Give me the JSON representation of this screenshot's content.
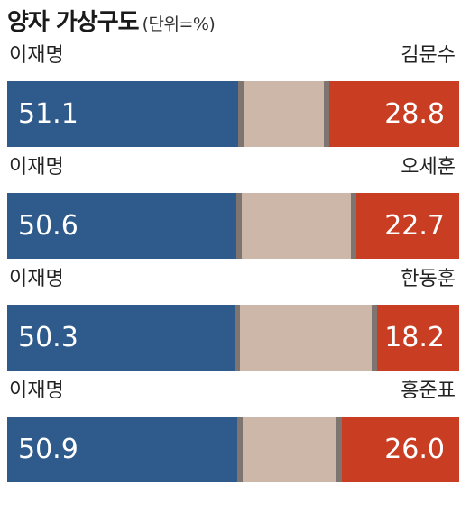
{
  "header": {
    "title": "양자 가상구도",
    "unit": "(단위=%)"
  },
  "colors": {
    "candidate_a": "#2f5a8c",
    "undecided": "#cdb7a9",
    "candidate_b": "#c93d22"
  },
  "chart_data": {
    "type": "bar",
    "orientation": "horizontal-stacked",
    "title": "양자 가상구도",
    "unit": "(단위=%)",
    "matchups": [
      {
        "left_name": "이재명",
        "left_value": 51.1,
        "right_name": "김문수",
        "right_value": 28.8
      },
      {
        "left_name": "이재명",
        "left_value": 50.6,
        "right_name": "오세훈",
        "right_value": 22.7
      },
      {
        "left_name": "이재명",
        "left_value": 50.3,
        "right_name": "한동훈",
        "right_value": 18.2
      },
      {
        "left_name": "이재명",
        "left_value": 50.9,
        "right_name": "홍준표",
        "right_value": 26.0
      }
    ],
    "xlim": [
      0,
      100
    ],
    "grid": false,
    "legend": "none"
  }
}
